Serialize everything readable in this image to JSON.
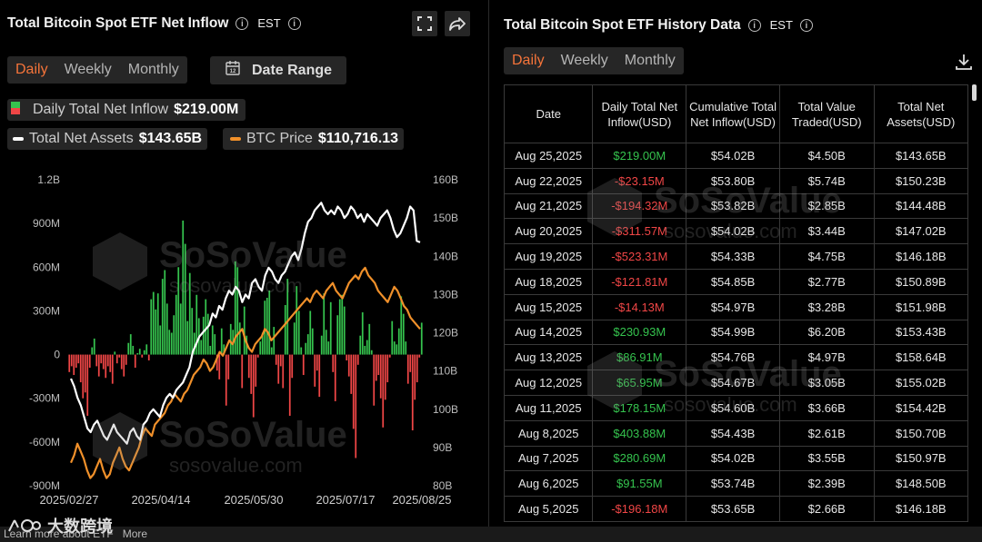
{
  "left": {
    "title": "Total Bitcoin Spot ETF Net Inflow",
    "tz": "EST",
    "tabs": [
      "Daily",
      "Weekly",
      "Monthly"
    ],
    "active_tab": "Daily",
    "date_range_label": "Date Range",
    "legend": {
      "inflow_label": "Daily Total Net Inflow",
      "inflow_value": "$219.00M",
      "assets_label": "Total Net Assets",
      "assets_value": "$143.65B",
      "btc_label": "BTC Price",
      "btc_value": "$110,716.13"
    }
  },
  "right": {
    "title": "Total Bitcoin Spot ETF History Data",
    "tz": "EST",
    "tabs": [
      "Daily",
      "Weekly",
      "Monthly"
    ],
    "active_tab": "Daily",
    "columns": [
      "Date",
      "Daily Total Net Inflow(USD)",
      "Cumulative Total Net Inflow(USD)",
      "Total Value Traded(USD)",
      "Total Net Assets(USD)"
    ],
    "rows": [
      {
        "date": "Aug 25,2025",
        "inflow": "$219.00M",
        "cum": "$54.02B",
        "traded": "$4.50B",
        "assets": "$143.65B",
        "sign": "pos"
      },
      {
        "date": "Aug 22,2025",
        "inflow": "-$23.15M",
        "cum": "$53.80B",
        "traded": "$5.74B",
        "assets": "$150.23B",
        "sign": "neg"
      },
      {
        "date": "Aug 21,2025",
        "inflow": "-$194.32M",
        "cum": "$53.82B",
        "traded": "$2.85B",
        "assets": "$144.48B",
        "sign": "neg"
      },
      {
        "date": "Aug 20,2025",
        "inflow": "-$311.57M",
        "cum": "$54.02B",
        "traded": "$3.44B",
        "assets": "$147.02B",
        "sign": "neg"
      },
      {
        "date": "Aug 19,2025",
        "inflow": "-$523.31M",
        "cum": "$54.33B",
        "traded": "$4.75B",
        "assets": "$146.18B",
        "sign": "neg"
      },
      {
        "date": "Aug 18,2025",
        "inflow": "-$121.81M",
        "cum": "$54.85B",
        "traded": "$2.77B",
        "assets": "$150.89B",
        "sign": "neg"
      },
      {
        "date": "Aug 15,2025",
        "inflow": "-$14.13M",
        "cum": "$54.97B",
        "traded": "$3.28B",
        "assets": "$151.98B",
        "sign": "neg"
      },
      {
        "date": "Aug 14,2025",
        "inflow": "$230.93M",
        "cum": "$54.99B",
        "traded": "$6.20B",
        "assets": "$153.43B",
        "sign": "pos"
      },
      {
        "date": "Aug 13,2025",
        "inflow": "$86.91M",
        "cum": "$54.76B",
        "traded": "$4.97B",
        "assets": "$158.64B",
        "sign": "pos"
      },
      {
        "date": "Aug 12,2025",
        "inflow": "$65.95M",
        "cum": "$54.67B",
        "traded": "$3.05B",
        "assets": "$155.02B",
        "sign": "pos"
      },
      {
        "date": "Aug 11,2025",
        "inflow": "$178.15M",
        "cum": "$54.60B",
        "traded": "$3.66B",
        "assets": "$154.42B",
        "sign": "pos"
      },
      {
        "date": "Aug 8,2025",
        "inflow": "$403.88M",
        "cum": "$54.43B",
        "traded": "$2.61B",
        "assets": "$150.70B",
        "sign": "pos"
      },
      {
        "date": "Aug 7,2025",
        "inflow": "$280.69M",
        "cum": "$54.02B",
        "traded": "$3.55B",
        "assets": "$150.97B",
        "sign": "pos"
      },
      {
        "date": "Aug 6,2025",
        "inflow": "$91.55M",
        "cum": "$53.74B",
        "traded": "$2.39B",
        "assets": "$148.50B",
        "sign": "pos"
      },
      {
        "date": "Aug 5,2025",
        "inflow": "-$196.18M",
        "cum": "$53.65B",
        "traded": "$2.66B",
        "assets": "$146.18B",
        "sign": "neg"
      }
    ]
  },
  "footer": {
    "text": "Learn more about ETF   More"
  },
  "watermark": {
    "brand": "SoSoValue",
    "url": "sosovalue.com",
    "corner_logo": "大数跨境"
  },
  "colors": {
    "accent": "#f5743a",
    "pos": "#35c34e",
    "neg": "#f04646",
    "assets_line": "#ffffff",
    "btc_line": "#f0902a"
  },
  "chart_data": {
    "type": "bar",
    "title": "Total Bitcoin Spot ETF Net Inflow",
    "y_left": {
      "ticks": [
        "1.2B",
        "900M",
        "600M",
        "300M",
        "0",
        "-300M",
        "-600M",
        "-900M"
      ],
      "range": [
        -900,
        1200
      ],
      "unit": "M"
    },
    "y_right": {
      "ticks": [
        "160B",
        "150B",
        "140B",
        "130B",
        "120B",
        "110B",
        "100B",
        "90B",
        "80B"
      ],
      "range": [
        80,
        160
      ],
      "unit": "B"
    },
    "x_ticks": [
      "2025/02/27",
      "2025/04/14",
      "2025/05/30",
      "2025/07/17",
      "2025/08/25"
    ],
    "x_range": [
      "2025-02-27",
      "2025-08-25"
    ],
    "grid": false,
    "series": [
      {
        "name": "Daily Total Net Inflow",
        "type": "bar",
        "unit": "M",
        "color_pos": "#35c34e",
        "color_neg": "#f04646",
        "values": [
          -120,
          -80,
          -140,
          -90,
          -60,
          -190,
          -300,
          -260,
          -420,
          -90,
          50,
          110,
          -80,
          -150,
          -60,
          -100,
          -160,
          -80,
          -120,
          -200,
          20,
          -60,
          -20,
          -100,
          -150,
          -70,
          80,
          140,
          60,
          -90,
          10,
          40,
          -20,
          30,
          70,
          -40,
          380,
          430,
          310,
          420,
          200,
          520,
          580,
          350,
          170,
          150,
          270,
          410,
          600,
          350,
          920,
          760,
          230,
          560,
          320,
          150,
          410,
          250,
          100,
          260,
          380,
          280,
          60,
          200,
          140,
          -110,
          -170,
          180,
          70,
          -350,
          -170,
          210,
          170,
          640,
          600,
          220,
          -230,
          330,
          130,
          -160,
          -270,
          -430,
          -220,
          -20,
          90,
          150,
          370,
          390,
          440,
          50,
          190,
          -70,
          -200,
          -80,
          -230,
          340,
          520,
          -420,
          -160,
          220,
          470,
          300,
          50,
          -140,
          80,
          140,
          300,
          180,
          -220,
          -110,
          -290,
          130,
          420,
          170,
          90,
          360,
          -120,
          -320,
          270,
          380,
          410,
          330,
          -40,
          -150,
          -270,
          -510,
          -710,
          -70,
          130,
          290,
          60,
          100,
          210,
          30,
          -350,
          -180,
          -140,
          -300,
          -500,
          -310,
          -190,
          -20,
          230,
          90,
          70,
          180,
          400,
          280,
          90,
          -200,
          -120,
          -520,
          -310,
          -190,
          -20,
          219
        ]
      },
      {
        "name": "Total Net Assets",
        "type": "line",
        "unit": "B",
        "color": "#ffffff",
        "values": [
          108,
          106,
          103,
          101,
          98,
          95,
          94,
          96,
          97,
          95,
          93,
          92,
          94,
          96,
          94,
          93,
          92,
          91,
          94,
          95,
          93,
          92,
          96,
          97,
          99,
          100,
          99,
          98,
          101,
          103,
          104,
          103,
          105,
          106,
          107,
          109,
          111,
          115,
          117,
          119,
          120,
          121,
          122,
          125,
          124,
          127,
          126,
          129,
          131,
          130,
          132,
          131,
          128,
          130,
          129,
          133,
          134,
          132,
          131,
          135,
          137,
          136,
          134,
          133,
          135,
          136,
          138,
          140,
          141,
          139,
          142,
          146,
          149,
          150,
          152,
          153,
          154,
          152,
          151,
          152,
          151,
          153,
          152,
          150,
          151,
          153,
          152,
          150,
          151,
          149,
          151,
          150,
          149,
          148,
          150,
          151,
          152,
          150,
          147,
          145,
          146,
          148,
          150,
          153,
          152,
          144,
          143.65
        ]
      },
      {
        "name": "BTC Price",
        "type": "line",
        "unit": "B",
        "color": "#f0902a",
        "values": [
          86,
          88,
          91,
          89,
          87,
          84,
          82,
          83,
          85,
          87,
          84,
          82,
          83,
          86,
          88,
          90,
          87,
          85,
          84,
          86,
          88,
          90,
          93,
          95,
          94,
          93,
          96,
          97,
          98,
          99,
          101,
          102,
          104,
          103,
          102,
          104,
          105,
          107,
          109,
          110,
          111,
          113,
          112,
          110,
          111,
          113,
          115,
          114,
          116,
          118,
          117,
          119,
          120,
          121,
          118,
          116,
          115,
          117,
          118,
          119,
          121,
          120,
          118,
          119,
          120,
          121,
          122,
          123,
          124,
          125,
          126,
          127,
          128,
          129,
          128,
          130,
          131,
          130,
          129,
          131,
          132,
          133,
          131,
          130,
          129,
          131,
          133,
          134,
          135,
          134,
          136,
          137,
          135,
          134,
          133,
          131,
          130,
          129,
          128,
          130,
          132,
          131,
          129,
          127,
          126,
          124,
          123,
          122,
          121
        ]
      }
    ]
  }
}
